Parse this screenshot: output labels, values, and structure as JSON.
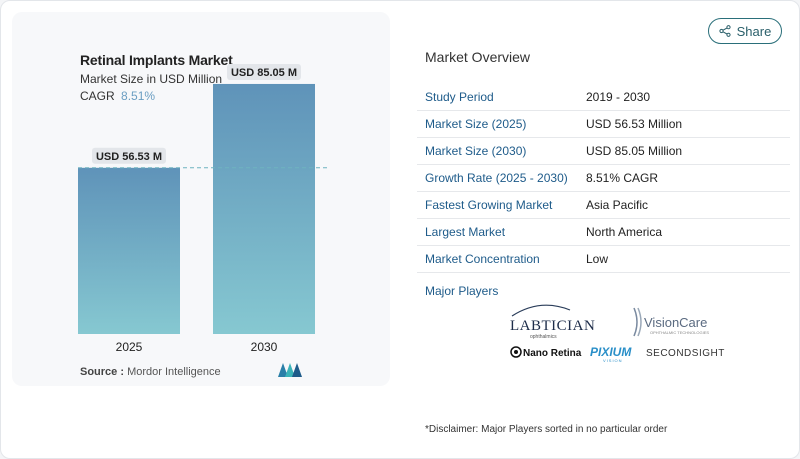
{
  "chart_data": {
    "type": "bar",
    "title": "Retinal Implants Market",
    "subtitle": "Market Size in USD Million",
    "cagr_label": "CAGR",
    "cagr_value": "8.51%",
    "categories": [
      "2025",
      "2030"
    ],
    "values": [
      56.53,
      85.05
    ],
    "data_labels": [
      "USD 56.53 M",
      "USD 85.05 M"
    ],
    "ylim": [
      0,
      100
    ],
    "reference_line": 56.53,
    "bar_colors_top": "#5f93b9",
    "bar_colors_bottom": "#86c8d1",
    "grid": false
  },
  "source": {
    "label": "Source :",
    "value": "Mordor Intelligence"
  },
  "share": {
    "label": "Share"
  },
  "overview": {
    "title": "Market Overview",
    "rows": [
      {
        "key": "Study Period",
        "value": "2019 - 2030"
      },
      {
        "key": "Market Size (2025)",
        "value": "USD 56.53 Million"
      },
      {
        "key": "Market Size (2030)",
        "value": "USD 85.05 Million"
      },
      {
        "key": "Growth Rate (2025 - 2030)",
        "value": "8.51% CAGR"
      },
      {
        "key": "Fastest Growing Market",
        "value": "Asia Pacific"
      },
      {
        "key": "Largest Market",
        "value": "North America"
      },
      {
        "key": "Market Concentration",
        "value": "Low"
      }
    ]
  },
  "players": {
    "title": "Major Players",
    "logos": [
      "LABTICIAN",
      "VisionCare",
      "Nano Retina",
      "PIXIUM",
      "SECONDSIGHT"
    ]
  },
  "disclaimer": "*Disclaimer: Major Players sorted in no particular order",
  "colors": {
    "accent": "#1e5b8a",
    "share_border": "#2a6f7a",
    "cagr": "#6a9ec2"
  }
}
